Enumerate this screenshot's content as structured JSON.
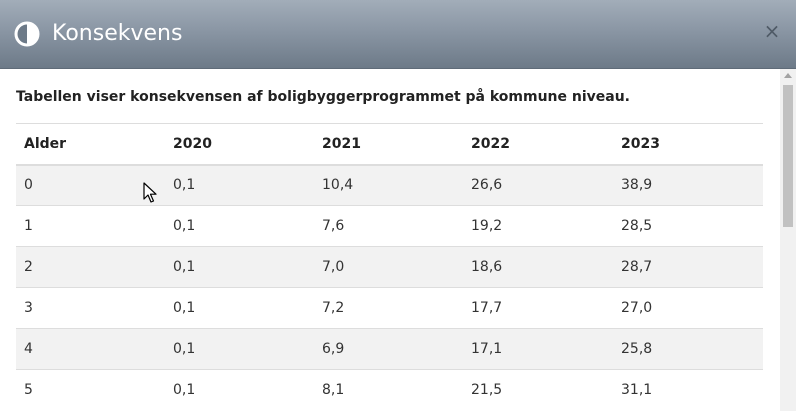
{
  "dialog": {
    "title": "Konsekvens",
    "icon": "contrast-circle-icon",
    "close_label": "×"
  },
  "intro_text": "Tabellen viser konsekvensen af boligbyggerprogrammet på kommune niveau.",
  "table": {
    "headers": [
      "Alder",
      "2020",
      "2021",
      "2022",
      "2023"
    ],
    "rows": [
      [
        "0",
        "0,1",
        "10,4",
        "26,6",
        "38,9"
      ],
      [
        "1",
        "0,1",
        "7,6",
        "19,2",
        "28,5"
      ],
      [
        "2",
        "0,1",
        "7,0",
        "18,6",
        "28,7"
      ],
      [
        "3",
        "0,1",
        "7,2",
        "17,7",
        "27,0"
      ],
      [
        "4",
        "0,1",
        "6,9",
        "17,1",
        "25,8"
      ],
      [
        "5",
        "0,1",
        "8,1",
        "21,5",
        "31,1"
      ]
    ]
  },
  "colors": {
    "header_top": "#a2adb9",
    "header_bottom": "#6d7a88",
    "stripe": "#f2f2f2",
    "border": "#dddddd"
  }
}
